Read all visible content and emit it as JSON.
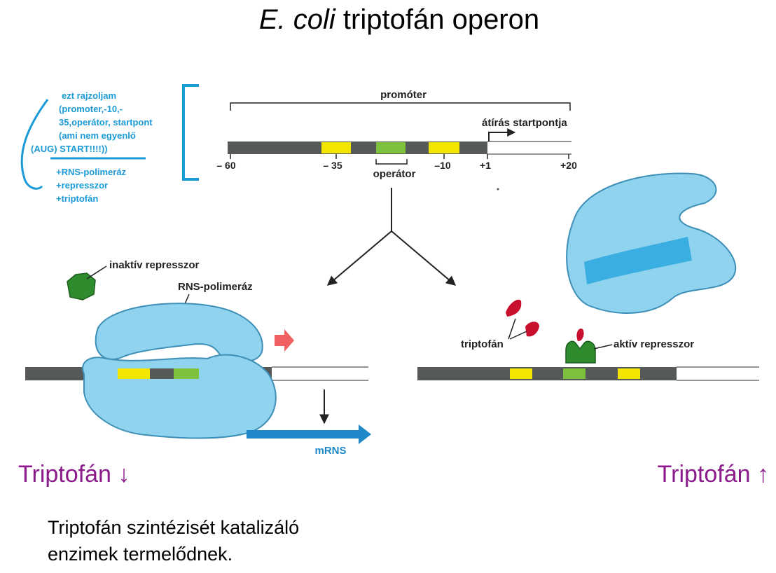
{
  "title": {
    "italic": "E. coli",
    "rest": " triptofán operon"
  },
  "notes": {
    "line1": "ezt rajzoljam",
    "line2": "(promoter,-10,-",
    "line3": "35,operátor, startpont",
    "line4": "(ami nem egyenlő",
    "line5": "(AUG) START!!!!))",
    "line6": "+RNS-polimeráz",
    "line7": "+represszor",
    "line8": "+triptofán"
  },
  "top_diagram": {
    "promoter_label": "promóter",
    "start_label": "átírás startpontja",
    "operator_label": "operátor",
    "ticks": [
      "– 60",
      "– 35",
      "–10",
      "+1",
      "+20"
    ]
  },
  "left_panel": {
    "inactive_repressor": "inaktív represszor",
    "rna_polymerase": "RNS-polimeráz",
    "mrna": "mRNS"
  },
  "right_panel": {
    "tryptophan": "triptofán",
    "active_repressor": "aktív represszor"
  },
  "trp_low": "Triptofán ↓",
  "trp_high": "Triptofán ↑",
  "bottom_text": {
    "line1": "Triptofán szintézisét katalizáló",
    "line2": "enzimek termelődnek."
  },
  "colors": {
    "dna_dark": "#555a59",
    "box_yellow": "#f2e600",
    "box_green": "#7dc23a",
    "protein_blue": "#8fd3ef",
    "protein_stroke": "#3d8fb7",
    "repressor_green": "#2e8b2e",
    "trp_red": "#c8102e",
    "mrna_blue": "#1e88c8",
    "note_blue": "#1a9ad6",
    "trp_purple": "#8b1a8b"
  }
}
